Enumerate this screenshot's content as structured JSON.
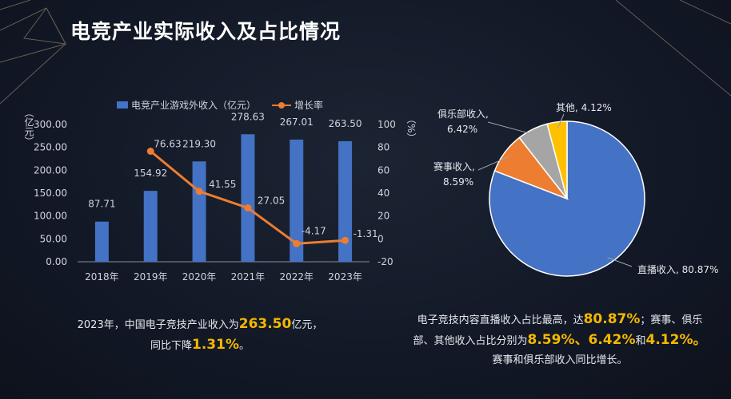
{
  "title": "电竞产业实际收入及占比情况",
  "bar_chart": {
    "legend_bar": "电竞产业游戏外收入（亿元）",
    "legend_line": "增长率",
    "y_left_label": "（亿元）",
    "y_right_label": "（%）",
    "y_left_ticks": [
      "0.00",
      "50.00",
      "100.00",
      "150.00",
      "200.00",
      "250.00",
      "300.00"
    ],
    "y_right_ticks": [
      "-20",
      "0",
      "20",
      "40",
      "60",
      "80",
      "100"
    ]
  },
  "pie_chart": {
    "labels": [
      {
        "line1": "直播收入, 80.87%",
        "line2": ""
      },
      {
        "line1": "赛事收入,",
        "line2": "8.59%"
      },
      {
        "line1": "俱乐部收入,",
        "line2": "6.42%"
      },
      {
        "line1": "其他, 4.12%",
        "line2": ""
      }
    ]
  },
  "notes": {
    "left": {
      "p1": "2023年，中国电子竞技产业收入为",
      "v1": "263.50",
      "p2": "亿元，",
      "p3": "同比下降",
      "v2": "1.31%",
      "p4": "。"
    },
    "right": {
      "p1": "电子竞技内容直播收入占比最高，达",
      "v1": "80.87%",
      "p2": "；赛事、俱乐",
      "p3": "部、其他收入占比分别为",
      "v2": "8.59%",
      "s1": "、",
      "v3": "6.42%",
      "s2": "和",
      "v4": "4.12%",
      "p4": "。",
      "p5": "赛事和俱乐部收入同比增长。"
    }
  },
  "colors": {
    "bar": "#4472c4",
    "line": "#ed7d31",
    "pie": [
      "#4472c4",
      "#ed7d31",
      "#a5a5a5",
      "#ffc000"
    ],
    "highlight": "#f5b800"
  },
  "chart_data": [
    {
      "type": "bar",
      "categories": [
        "2018年",
        "2019年",
        "2020年",
        "2021年",
        "2022年",
        "2023年"
      ],
      "series": [
        {
          "name": "电竞产业游戏外收入（亿元）",
          "values": [
            87.71,
            154.92,
            219.3,
            278.63,
            267.01,
            263.5
          ],
          "labels": [
            "87.71",
            "154.92",
            "219.30",
            "278.63",
            "267.01",
            "263.50"
          ],
          "axis": "left"
        },
        {
          "name": "增长率",
          "type": "line",
          "values": [
            null,
            76.63,
            41.55,
            27.05,
            -4.17,
            -1.31
          ],
          "labels": [
            "",
            "76.63",
            "41.55",
            "27.05",
            "-4.17",
            "-1.31"
          ],
          "axis": "right"
        }
      ],
      "ylim": [
        0,
        300
      ],
      "y2lim": [
        -20,
        100
      ],
      "ylabel": "（亿元）",
      "y2label": "（%）",
      "legend": "top",
      "grid": false
    },
    {
      "type": "pie",
      "categories": [
        "直播收入",
        "赛事收入",
        "俱乐部收入",
        "其他"
      ],
      "values": [
        80.87,
        8.59,
        6.42,
        4.12
      ]
    }
  ]
}
